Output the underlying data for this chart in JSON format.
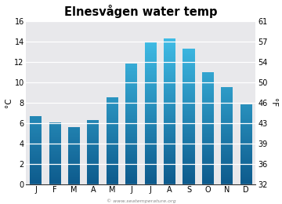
{
  "title": "Elnesvågen water temp",
  "months": [
    "J",
    "F",
    "M",
    "A",
    "M",
    "J",
    "J",
    "A",
    "S",
    "O",
    "N",
    "D"
  ],
  "values_c": [
    6.7,
    6.1,
    5.6,
    6.3,
    8.5,
    11.8,
    13.9,
    14.3,
    13.3,
    11.0,
    9.5,
    7.8
  ],
  "ylabel_left": "°C",
  "ylabel_right": "°F",
  "yticks_left": [
    0,
    2,
    4,
    6,
    8,
    10,
    12,
    14,
    16
  ],
  "yticks_right": [
    32,
    36,
    39,
    43,
    46,
    50,
    54,
    57,
    61
  ],
  "ylim": [
    0,
    16
  ],
  "bg_color": "#e8e8eb",
  "bar_color_top": "#45c8f0",
  "bar_color_bottom": "#0d5a8c",
  "title_fontsize": 10.5,
  "axis_fontsize": 7.5,
  "tick_fontsize": 7,
  "watermark": "© www.seatemperature.org",
  "bar_width": 0.62
}
